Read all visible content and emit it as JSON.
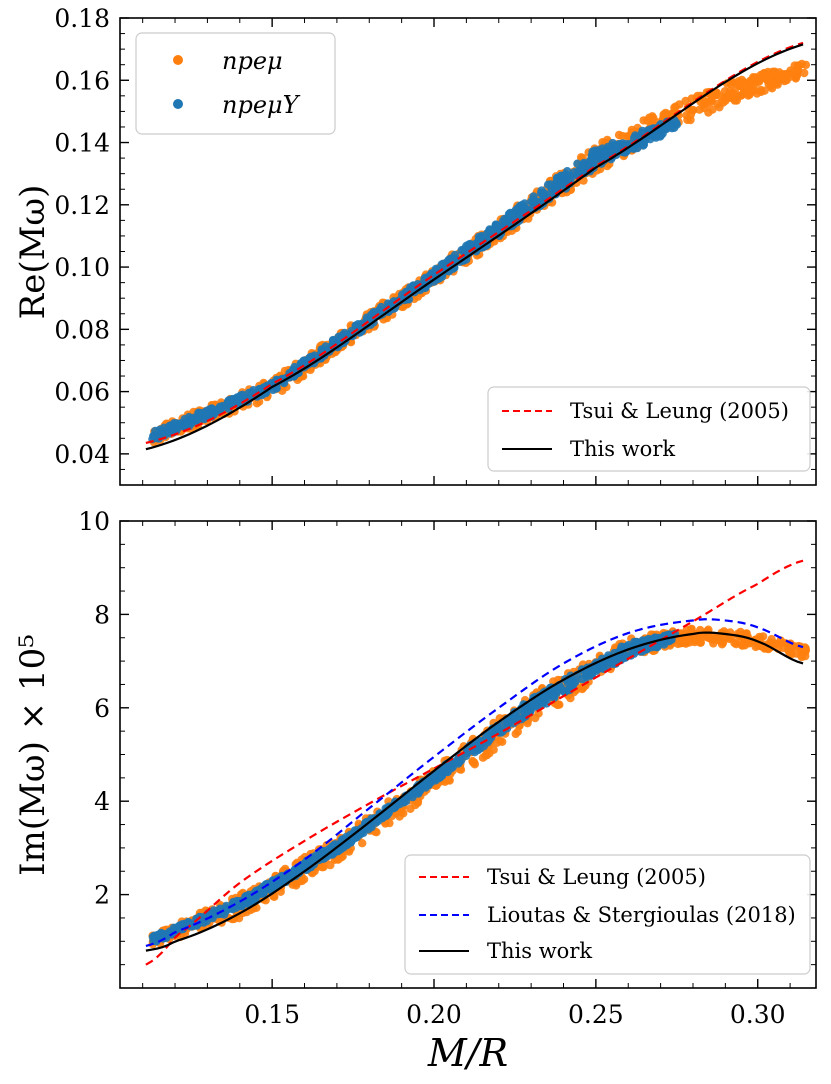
{
  "colors": {
    "npemu": "#ff7f0e",
    "npemuY": "#1f77b4",
    "tsui": "#ff0000",
    "lioutas": "#0000ff",
    "thiswork": "#000000"
  },
  "chart_data": [
    {
      "type": "scatter",
      "panel": "top",
      "xlabel": "M/R",
      "ylabel": "Re(Mω)",
      "xlim": [
        0.103,
        0.318
      ],
      "ylim": [
        0.03,
        0.18
      ],
      "yticks": [
        0.04,
        0.06,
        0.08,
        0.1,
        0.12,
        0.14,
        0.16,
        0.18
      ],
      "ytick_labels": [
        "0.04",
        "0.06",
        "0.08",
        "0.10",
        "0.12",
        "0.14",
        "0.16",
        "0.18"
      ],
      "legend_scatter": {
        "location": "upper left",
        "entries": [
          "npeμ",
          "npeμY"
        ]
      },
      "legend_lines": {
        "location": "lower right",
        "entries": [
          "Tsui & Leung (2005)",
          "This work"
        ]
      },
      "series": [
        {
          "name": "npeμ",
          "kind": "scatter-band",
          "color": "#ff7f0e",
          "x": [
            0.113,
            0.15,
            0.2,
            0.25,
            0.27,
            0.29,
            0.315
          ],
          "y_low": [
            0.043,
            0.058,
            0.094,
            0.13,
            0.143,
            0.152,
            0.161
          ],
          "y_high": [
            0.048,
            0.064,
            0.1,
            0.139,
            0.15,
            0.159,
            0.166
          ]
        },
        {
          "name": "npeμY",
          "kind": "scatter-band",
          "color": "#1f77b4",
          "x": [
            0.113,
            0.15,
            0.2,
            0.25,
            0.275
          ],
          "y_low": [
            0.044,
            0.06,
            0.095,
            0.132,
            0.144
          ],
          "y_high": [
            0.047,
            0.063,
            0.099,
            0.138,
            0.148
          ]
        },
        {
          "name": "Tsui & Leung (2005)",
          "kind": "line",
          "style": "dashed",
          "color": "#ff0000",
          "x": [
            0.111,
            0.15,
            0.2,
            0.25,
            0.314
          ],
          "y": [
            0.0435,
            0.0625,
            0.0975,
            0.1325,
            0.172
          ]
        },
        {
          "name": "This work",
          "kind": "line",
          "style": "solid",
          "color": "#000000",
          "x": [
            0.111,
            0.15,
            0.2,
            0.25,
            0.314
          ],
          "y": [
            0.0415,
            0.0615,
            0.096,
            0.132,
            0.1715
          ]
        }
      ]
    },
    {
      "type": "scatter",
      "panel": "bottom",
      "xlabel": "M/R",
      "ylabel": "Im(Mω) × 10⁵",
      "xlim": [
        0.103,
        0.318
      ],
      "ylim": [
        0.0,
        10.0
      ],
      "yticks": [
        2,
        4,
        6,
        8,
        10
      ],
      "ytick_labels": [
        "2",
        "4",
        "6",
        "8",
        "10"
      ],
      "xticks": [
        0.15,
        0.2,
        0.25,
        0.3
      ],
      "xtick_labels": [
        "0.15",
        "0.20",
        "0.25",
        "0.30"
      ],
      "legend_lines": {
        "location": "lower right",
        "entries": [
          "Tsui & Leung (2005)",
          "Lioutas & Stergioulas (2018)",
          "This work"
        ]
      },
      "series": [
        {
          "name": "npeμ",
          "kind": "scatter-band",
          "color": "#ff7f0e",
          "x": [
            0.113,
            0.14,
            0.17,
            0.2,
            0.23,
            0.26,
            0.28,
            0.3,
            0.315
          ],
          "y_low": [
            0.9,
            1.5,
            2.7,
            4.2,
            5.6,
            7.1,
            7.4,
            7.3,
            7.05
          ],
          "y_high": [
            1.15,
            2.0,
            3.2,
            4.7,
            6.3,
            7.5,
            7.7,
            7.6,
            7.3
          ]
        },
        {
          "name": "npeμY",
          "kind": "scatter-band",
          "color": "#1f77b4",
          "x": [
            0.113,
            0.14,
            0.17,
            0.2,
            0.23,
            0.26,
            0.275
          ],
          "y_low": [
            0.95,
            1.7,
            2.9,
            4.4,
            5.9,
            7.1,
            7.4
          ],
          "y_high": [
            1.1,
            1.9,
            3.1,
            4.6,
            6.2,
            7.4,
            7.6
          ]
        },
        {
          "name": "Tsui & Leung (2005)",
          "kind": "line",
          "style": "dashed",
          "color": "#ff0000",
          "x": [
            0.111,
            0.12,
            0.14,
            0.16,
            0.18,
            0.2,
            0.22,
            0.24,
            0.26,
            0.28,
            0.3,
            0.314
          ],
          "y": [
            0.5,
            1.1,
            2.25,
            3.15,
            3.95,
            4.7,
            5.45,
            6.25,
            7.05,
            7.85,
            8.65,
            9.15
          ]
        },
        {
          "name": "Lioutas & Stergioulas (2018)",
          "kind": "line",
          "style": "dashed",
          "color": "#0000ff",
          "x": [
            0.111,
            0.12,
            0.14,
            0.16,
            0.18,
            0.2,
            0.22,
            0.24,
            0.26,
            0.28,
            0.29,
            0.3,
            0.314
          ],
          "y": [
            0.9,
            1.2,
            1.85,
            2.75,
            3.85,
            4.95,
            6.0,
            6.95,
            7.6,
            7.87,
            7.87,
            7.72,
            7.3
          ]
        },
        {
          "name": "This work",
          "kind": "line",
          "style": "solid",
          "color": "#000000",
          "x": [
            0.111,
            0.12,
            0.14,
            0.16,
            0.18,
            0.2,
            0.22,
            0.24,
            0.26,
            0.28,
            0.29,
            0.3,
            0.314
          ],
          "y": [
            0.8,
            1.0,
            1.6,
            2.5,
            3.55,
            4.65,
            5.7,
            6.6,
            7.25,
            7.58,
            7.58,
            7.42,
            6.95
          ]
        }
      ]
    }
  ]
}
